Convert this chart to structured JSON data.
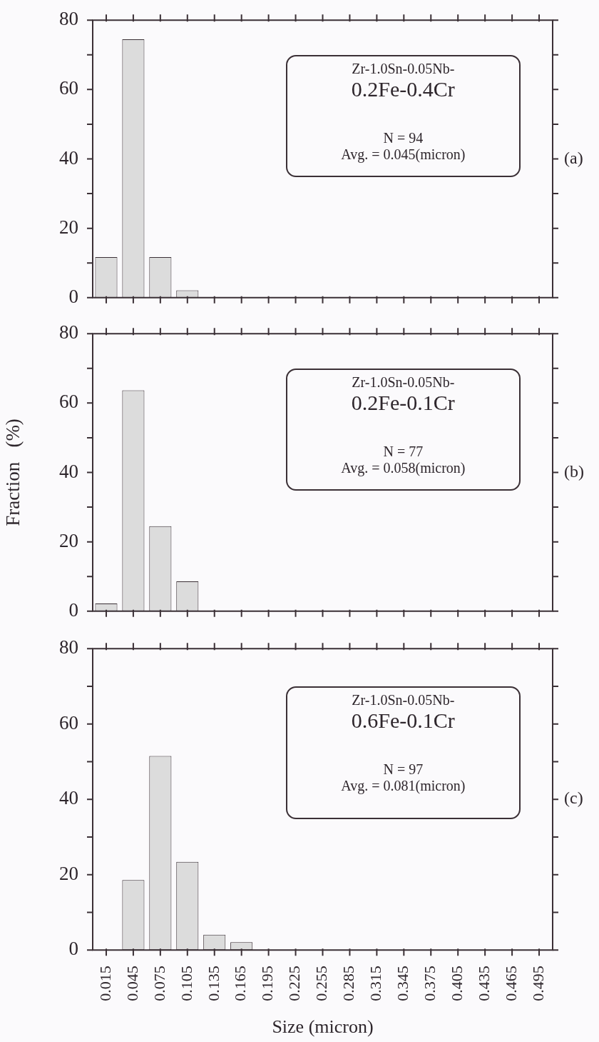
{
  "chart_data": [
    {
      "type": "bar",
      "categories": [
        "0.015",
        "0.045",
        "0.075",
        "0.105",
        "0.135",
        "0.165",
        "0.195",
        "0.225",
        "0.255",
        "0.285",
        "0.315",
        "0.345",
        "0.375",
        "0.405",
        "0.435",
        "0.465",
        "0.495"
      ],
      "values": [
        11.7,
        74.5,
        11.7,
        2.1,
        0,
        0,
        0,
        0,
        0,
        0,
        0,
        0,
        0,
        0,
        0,
        0,
        0
      ],
      "color": "#dcdcdc",
      "ylim": [
        0,
        80
      ],
      "yticks": [
        0,
        {
          "value": 10,
          "label": null
        },
        20,
        {
          "value": 30,
          "label": null
        },
        40,
        {
          "value": 50,
          "label": null
        },
        60,
        {
          "value": 70,
          "label": null
        },
        80
      ],
      "tick_labels": "y",
      "annotations": [
        "Zr-1.0Sn-0.05Nb-",
        "0.2Fe-0.4Cr",
        "N  = 94",
        "Avg. = 0.045(micron)",
        "(a)"
      ]
    },
    {
      "type": "bar",
      "categories": [
        "0.015",
        "0.045",
        "0.075",
        "0.105",
        "0.135",
        "0.165",
        "0.195",
        "0.225",
        "0.255",
        "0.285",
        "0.315",
        "0.345",
        "0.375",
        "0.405",
        "0.435",
        "0.465",
        "0.495"
      ],
      "values": [
        2.2,
        63.7,
        24.5,
        8.6,
        0,
        0,
        0,
        0,
        0,
        0,
        0,
        0,
        0,
        0,
        0,
        0,
        0
      ],
      "color": "#dcdcdc",
      "ylabel": "Fraction   (%)",
      "ylim": [
        0,
        80
      ],
      "yticks": [
        0,
        {
          "value": 10,
          "label": null
        },
        20,
        {
          "value": 30,
          "label": null
        },
        40,
        {
          "value": 50,
          "label": null
        },
        60,
        {
          "value": 70,
          "label": null
        },
        80
      ],
      "tick_labels": "y",
      "annotations": [
        "Zr-1.0Sn-0.05Nb-",
        "0.2Fe-0.1Cr",
        "N  = 77",
        "Avg. = 0.058(micron)",
        "(b)"
      ]
    },
    {
      "type": "bar",
      "categories": [
        "0.015",
        "0.045",
        "0.075",
        "0.105",
        "0.135",
        "0.165",
        "0.195",
        "0.225",
        "0.255",
        "0.285",
        "0.315",
        "0.345",
        "0.375",
        "0.405",
        "0.435",
        "0.465",
        "0.495"
      ],
      "values": [
        0,
        18.6,
        51.5,
        23.4,
        4.1,
        2.1,
        0,
        0,
        0,
        0,
        0,
        0,
        0,
        0,
        0,
        0,
        0
      ],
      "color": "#dcdcdc",
      "xlabel": "Size (micron)",
      "ylim": [
        0,
        80
      ],
      "yticks": [
        0,
        {
          "value": 10,
          "label": null
        },
        20,
        {
          "value": 30,
          "label": null
        },
        40,
        {
          "value": 50,
          "label": null
        },
        60,
        {
          "value": 70,
          "label": null
        },
        80
      ],
      "annotations": [
        "Zr-1.0Sn-0.05Nb-",
        "0.6Fe-0.1Cr",
        "N  = 97",
        "Avg. = 0.081(micron)",
        "(c)"
      ]
    }
  ]
}
